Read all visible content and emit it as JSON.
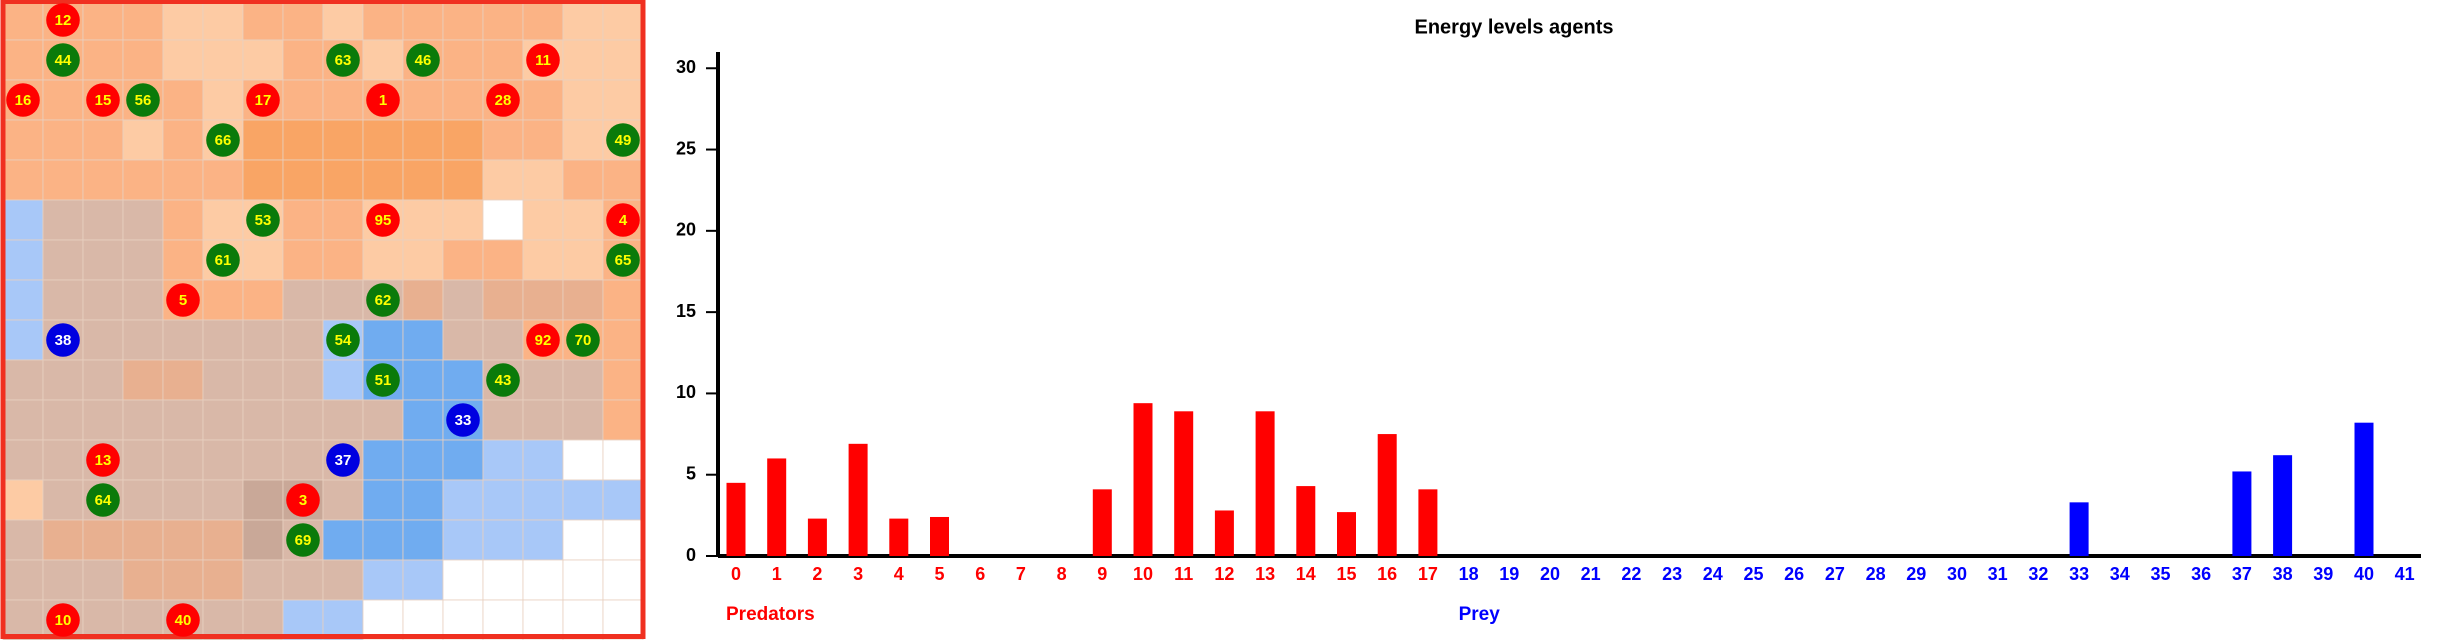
{
  "grid": {
    "size": 16,
    "kinds": {
      "predator": "#ff0000",
      "prey": "#0a7a0a",
      "hunter": "#0000e0"
    },
    "agents": [
      {
        "label": "12",
        "col": 1,
        "row": 0,
        "kind": "predator"
      },
      {
        "label": "44",
        "col": 1,
        "row": 1,
        "kind": "prey"
      },
      {
        "label": "63",
        "col": 8,
        "row": 1,
        "kind": "prey"
      },
      {
        "label": "46",
        "col": 10,
        "row": 1,
        "kind": "prey"
      },
      {
        "label": "11",
        "col": 13,
        "row": 1,
        "kind": "predator"
      },
      {
        "label": "16",
        "col": 0,
        "row": 2,
        "kind": "predator"
      },
      {
        "label": "15",
        "col": 2,
        "row": 2,
        "kind": "predator"
      },
      {
        "label": "56",
        "col": 3,
        "row": 2,
        "kind": "prey"
      },
      {
        "label": "17",
        "col": 6,
        "row": 2,
        "kind": "predator"
      },
      {
        "label": "1",
        "col": 9,
        "row": 2,
        "kind": "predator"
      },
      {
        "label": "28",
        "col": 12,
        "row": 2,
        "kind": "predator"
      },
      {
        "label": "66",
        "col": 5,
        "row": 3,
        "kind": "prey"
      },
      {
        "label": "49",
        "col": 15,
        "row": 3,
        "kind": "prey"
      },
      {
        "label": "53",
        "col": 6,
        "row": 5,
        "kind": "prey"
      },
      {
        "label": "95",
        "col": 9,
        "row": 5,
        "kind": "predator"
      },
      {
        "label": "4",
        "col": 15,
        "row": 5,
        "kind": "predator"
      },
      {
        "label": "61",
        "col": 5,
        "row": 6,
        "kind": "prey"
      },
      {
        "label": "65",
        "col": 15,
        "row": 6,
        "kind": "prey"
      },
      {
        "label": "5",
        "col": 4,
        "row": 7,
        "kind": "predator"
      },
      {
        "label": "62",
        "col": 9,
        "row": 7,
        "kind": "prey"
      },
      {
        "label": "38",
        "col": 1,
        "row": 8,
        "kind": "hunter"
      },
      {
        "label": "54",
        "col": 8,
        "row": 8,
        "kind": "prey"
      },
      {
        "label": "92",
        "col": 13,
        "row": 8,
        "kind": "predator"
      },
      {
        "label": "70",
        "col": 14,
        "row": 8,
        "kind": "prey"
      },
      {
        "label": "51",
        "col": 9,
        "row": 9,
        "kind": "prey"
      },
      {
        "label": "43",
        "col": 12,
        "row": 9,
        "kind": "prey"
      },
      {
        "label": "33",
        "col": 11,
        "row": 10,
        "kind": "hunter"
      },
      {
        "label": "13",
        "col": 2,
        "row": 11,
        "kind": "predator"
      },
      {
        "label": "37",
        "col": 8,
        "row": 11,
        "kind": "hunter"
      },
      {
        "label": "64",
        "col": 2,
        "row": 12,
        "kind": "prey"
      },
      {
        "label": "3",
        "col": 7,
        "row": 12,
        "kind": "predator"
      },
      {
        "label": "69",
        "col": 7,
        "row": 13,
        "kind": "prey"
      },
      {
        "label": "10",
        "col": 1,
        "row": 15,
        "kind": "predator"
      },
      {
        "label": "40",
        "col": 4,
        "row": 15,
        "kind": "predator"
      }
    ]
  },
  "chart_data": {
    "type": "bar",
    "title": "Energy levels agents",
    "categories": [
      "0",
      "1",
      "2",
      "3",
      "4",
      "5",
      "6",
      "7",
      "8",
      "9",
      "10",
      "11",
      "12",
      "13",
      "14",
      "15",
      "16",
      "17",
      "18",
      "19",
      "20",
      "21",
      "22",
      "23",
      "24",
      "25",
      "26",
      "27",
      "28",
      "29",
      "30",
      "31",
      "32",
      "33",
      "34",
      "35",
      "36",
      "37",
      "38",
      "39",
      "40",
      "41"
    ],
    "series": [
      {
        "name": "Predators",
        "color": "#ff0000",
        "values": [
          4.5,
          6.0,
          2.3,
          6.9,
          2.3,
          2.4,
          0,
          0,
          0,
          4.1,
          9.4,
          8.9,
          2.8,
          8.9,
          4.3,
          2.7,
          7.5,
          4.1,
          null,
          null,
          null,
          null,
          null,
          null,
          null,
          null,
          null,
          null,
          null,
          null,
          null,
          null,
          null,
          null,
          null,
          null,
          null,
          null,
          null,
          null,
          null,
          null
        ]
      },
      {
        "name": "Prey",
        "color": "#0000ff",
        "values": [
          null,
          null,
          null,
          null,
          null,
          null,
          null,
          null,
          null,
          null,
          null,
          null,
          null,
          null,
          null,
          null,
          null,
          null,
          0,
          0,
          0,
          0,
          0,
          0,
          0,
          0,
          0,
          0,
          0,
          0,
          0,
          0,
          0,
          3.3,
          0,
          0,
          0,
          5.2,
          6.2,
          0,
          8.2,
          0
        ]
      }
    ],
    "ylim": [
      0,
      31
    ],
    "yticks": [
      0,
      5,
      10,
      15,
      20,
      25,
      30
    ]
  }
}
